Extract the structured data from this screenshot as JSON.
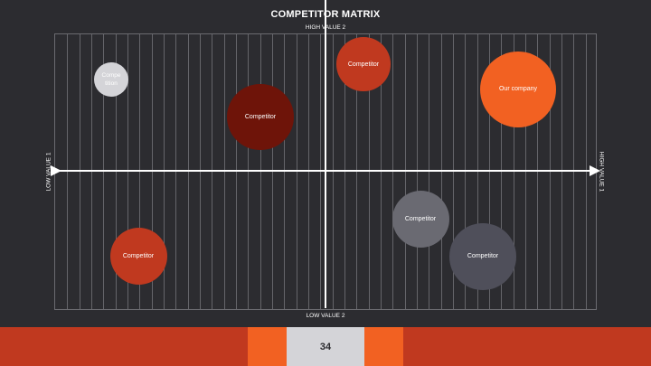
{
  "title": "COMPETITOR MATRIX",
  "axes": {
    "top": "HIGH VALUE 2",
    "bottom": "LOW VALUE 2",
    "left": "LOW VALUE 1",
    "right": "HIGH VALUE 1"
  },
  "bubbles": [
    {
      "label": "Compe tition",
      "x": -7.9,
      "y": 6.6,
      "size": 1.1,
      "color": "#d4d4d8",
      "text_color": "#ffffff"
    },
    {
      "label": "Competitor",
      "x": 1.4,
      "y": 7.7,
      "size": 1.7,
      "color": "#c0391f"
    },
    {
      "label": "Our company",
      "x": 7.1,
      "y": 5.9,
      "size": 2.4,
      "color": "#f26122"
    },
    {
      "label": "Competitor",
      "x": -2.4,
      "y": 3.9,
      "size": 2.1,
      "color": "#6e1409"
    },
    {
      "label": "Competitor",
      "x": 3.5,
      "y": -3.5,
      "size": 1.8,
      "color": "#6a6a72"
    },
    {
      "label": "Competitor",
      "x": 5.8,
      "y": -6.2,
      "size": 2.1,
      "color": "#4f4f5a"
    },
    {
      "label": "Competitor",
      "x": -6.9,
      "y": -6.2,
      "size": 1.8,
      "color": "#c0391f"
    }
  ],
  "range": {
    "x": [
      -10,
      10
    ],
    "y": [
      -10,
      10
    ]
  },
  "page_number": "34",
  "colors": {
    "background": "#2c2c30",
    "footer": "#c0391f",
    "accent": "#f26122",
    "page_box": "#d4d4d8"
  }
}
